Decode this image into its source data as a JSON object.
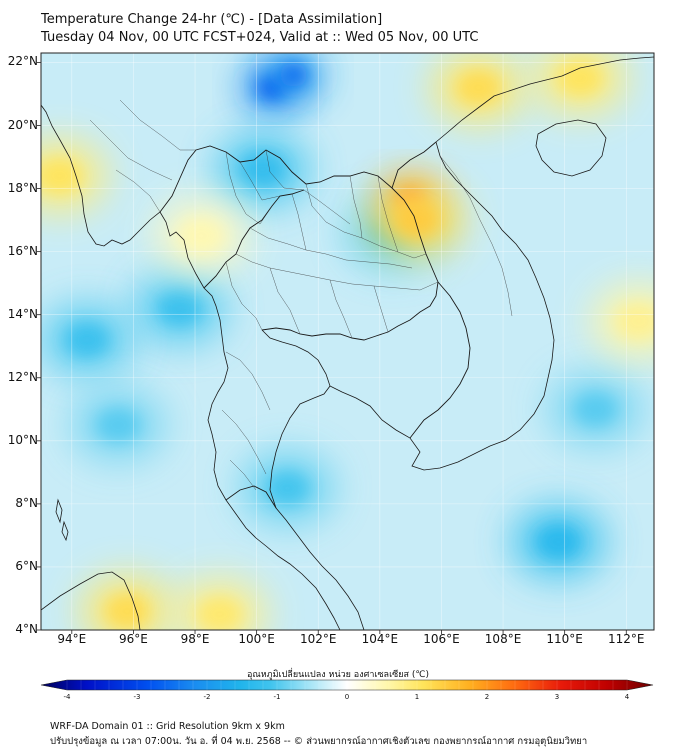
{
  "header": {
    "title_line1": "Temperature Change 24-hr (℃) - [Data Assimilation]",
    "title_line2": "Tuesday 04 Nov, 00 UTC FCST+024, Valid at :: Wed 05 Nov, 00 UTC"
  },
  "map": {
    "lat_labels": [
      "22°N",
      "20°N",
      "18°N",
      "16°N",
      "14°N",
      "12°N",
      "10°N",
      "8°N",
      "6°N",
      "4°N"
    ],
    "lon_labels": [
      "94°E",
      "96°E",
      "98°E",
      "100°E",
      "102°E",
      "104°E",
      "106°E",
      "108°E",
      "110°E",
      "112°E"
    ],
    "lat_values": [
      22,
      20,
      18,
      16,
      14,
      12,
      10,
      8,
      6,
      4
    ],
    "lon_values": [
      94,
      96,
      98,
      100,
      102,
      104,
      106,
      108,
      110,
      112
    ],
    "lat_range": [
      4,
      22.3
    ],
    "lon_range": [
      93,
      112.9
    ],
    "background_color": "#c8ecf7",
    "anomalies": [
      {
        "lon": 100.5,
        "lat": 21.2,
        "value": -2.6,
        "label": "cooling-core-north"
      },
      {
        "lon": 101.2,
        "lat": 21.6,
        "value": -2.3,
        "label": "cooling-north"
      },
      {
        "lon": 100.2,
        "lat": 18.6,
        "value": -1.2,
        "label": "cooling-north-thailand"
      },
      {
        "lon": 104.4,
        "lat": 16.6,
        "value": -1.0,
        "label": "cooling-isan"
      },
      {
        "lon": 97.5,
        "lat": 14.2,
        "value": -1.1,
        "label": "cooling-andaman-coast"
      },
      {
        "lon": 94.5,
        "lat": 13.2,
        "value": -1.1,
        "label": "cooling-andaman-sea"
      },
      {
        "lon": 95.5,
        "lat": 10.5,
        "value": -0.9,
        "label": "cooling-west"
      },
      {
        "lon": 101.0,
        "lat": 8.5,
        "value": -1.0,
        "label": "cooling-gulf"
      },
      {
        "lon": 109.8,
        "lat": 6.8,
        "value": -1.3,
        "label": "cooling-south-china-sea"
      },
      {
        "lon": 111.0,
        "lat": 11.0,
        "value": -0.9,
        "label": "cooling-east"
      },
      {
        "lon": 105.0,
        "lat": 17.6,
        "value": 2.2,
        "label": "warming-laos-core"
      },
      {
        "lon": 105.2,
        "lat": 17.0,
        "value": 1.3,
        "label": "warming-laos"
      },
      {
        "lon": 107.2,
        "lat": 21.2,
        "value": 1.1,
        "label": "warming-vietnam-north"
      },
      {
        "lon": 110.5,
        "lat": 21.5,
        "value": 1.0,
        "label": "warming-china-coast"
      },
      {
        "lon": 93.6,
        "lat": 18.4,
        "value": 1.0,
        "label": "warming-myanmar-coast"
      },
      {
        "lon": 95.8,
        "lat": 4.6,
        "value": 1.1,
        "label": "warming-sumatra"
      },
      {
        "lon": 98.8,
        "lat": 4.5,
        "value": 0.9,
        "label": "warming-malacca"
      },
      {
        "lon": 112.4,
        "lat": 13.8,
        "value": 0.7,
        "label": "warming-east-edge"
      },
      {
        "lon": 98.2,
        "lat": 16.5,
        "value": 0.5,
        "label": "warming-myanmar"
      }
    ]
  },
  "colorbar": {
    "title": "อุณหภูมิเปลี่ยนแปลง หน่วย องศาเซลเซียส (℃)",
    "tick_labels": [
      "-4",
      "-3",
      "-2",
      "-1",
      "0",
      "1",
      "2",
      "3",
      "4"
    ],
    "range": [
      -4,
      4
    ],
    "color_stops": [
      {
        "v": -4,
        "c": "#00005a"
      },
      {
        "v": -3.4,
        "c": "#0010c8"
      },
      {
        "v": -2.6,
        "c": "#0050f0"
      },
      {
        "v": -2.0,
        "c": "#1a8cf0"
      },
      {
        "v": -1.4,
        "c": "#20b4ec"
      },
      {
        "v": -1.0,
        "c": "#40c4ee"
      },
      {
        "v": -0.5,
        "c": "#a4e4f6"
      },
      {
        "v": 0,
        "c": "#ffffff"
      },
      {
        "v": 0.5,
        "c": "#fff8b0"
      },
      {
        "v": 1.0,
        "c": "#ffe45a"
      },
      {
        "v": 1.6,
        "c": "#ffb020"
      },
      {
        "v": 2.2,
        "c": "#ff6a10"
      },
      {
        "v": 2.8,
        "c": "#e81a0a"
      },
      {
        "v": 3.4,
        "c": "#c00000"
      },
      {
        "v": 4,
        "c": "#6a0000"
      }
    ]
  },
  "footer": {
    "line1": "WRF-DA Domain 01 :: Grid Resolution 9km x 9km",
    "line2": "ปรับปรุงข้อมูล ณ เวลา 07:00น. วัน อ. ที่ 04 พ.ย. 2568 -- © ส่วนพยากรณ์อากาศเชิงตัวเลข กองพยากรณ์อากาศ กรมอุตุนิยมวิทยา"
  }
}
